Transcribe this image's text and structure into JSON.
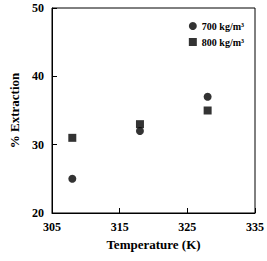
{
  "chart_data": {
    "type": "scatter",
    "xlabel": "Temperature (K)",
    "ylabel": "% Extraction",
    "series": [
      {
        "name": "700 kg/m³",
        "color": "#000000",
        "marker": "circle",
        "x": [
          308,
          318,
          328
        ],
        "values": [
          25,
          32,
          37
        ]
      },
      {
        "name": "800 kg/m³",
        "color": "#000000",
        "marker": "square",
        "x": [
          308,
          318,
          328
        ],
        "values": [
          31,
          33,
          35
        ]
      }
    ],
    "xlim": [
      305,
      335
    ],
    "xticks": [
      305,
      315,
      325,
      335
    ],
    "ylim": [
      20,
      50
    ],
    "yticks": [
      20,
      30,
      40,
      50
    ],
    "grid": false,
    "legend": "upper right"
  }
}
